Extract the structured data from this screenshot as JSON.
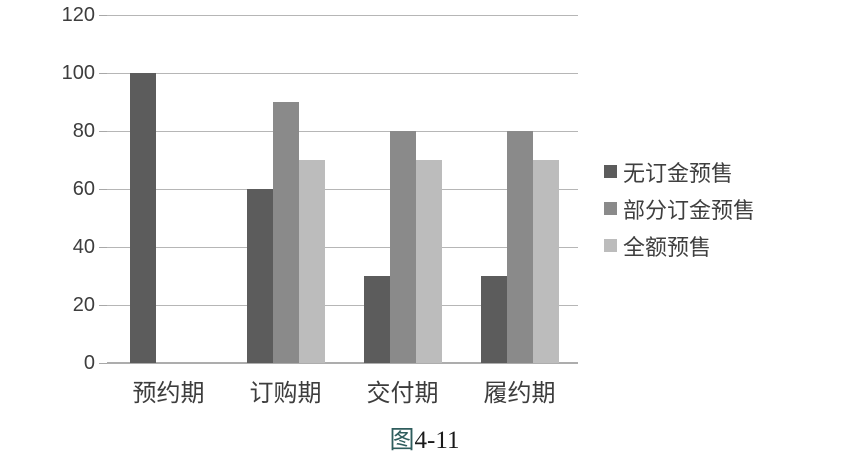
{
  "chart_data": {
    "type": "bar",
    "title": "",
    "categories": [
      "预约期",
      "订购期",
      "交付期",
      "履约期"
    ],
    "series": [
      {
        "name": "无订金预售",
        "color": "#5c5c5c",
        "values": [
          100,
          60,
          30,
          30
        ]
      },
      {
        "name": "部分订金预售",
        "color": "#8a8a8a",
        "values": [
          0,
          90,
          80,
          80
        ]
      },
      {
        "name": "全额预售",
        "color": "#bcbcbc",
        "values": [
          0,
          70,
          70,
          70
        ]
      }
    ],
    "y_ticks": [
      0,
      20,
      40,
      60,
      80,
      100,
      120
    ],
    "ylim": [
      0,
      120
    ],
    "xlabel": "",
    "ylabel": "",
    "grid": true,
    "legend_position": "right"
  },
  "caption": {
    "prefix": "图",
    "rest": "4-11"
  },
  "colors": {
    "background": "#ffffff",
    "gridline": "#b6b6b6",
    "axis_line": "#adadad",
    "tick_text": "#3d3d3d",
    "legend_text": "#3f3f3f",
    "caption_prefix": "#2f5d5d",
    "caption_text": "#1a1a1a"
  }
}
